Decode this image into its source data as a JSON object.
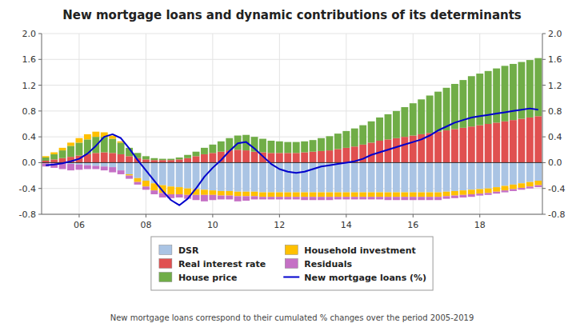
{
  "chart_data": {
    "type": "bar",
    "stacked": true,
    "title": "New mortgage loans and dynamic contributions of its determinants",
    "subtitle": "New mortgage loans correspond to their cumulated % changes over the period 2005-2019",
    "categories": [
      null,
      null,
      null,
      null,
      "06",
      null,
      null,
      null,
      null,
      null,
      null,
      null,
      "08",
      null,
      null,
      null,
      null,
      null,
      null,
      null,
      "10",
      null,
      null,
      null,
      null,
      null,
      null,
      null,
      "12",
      null,
      null,
      null,
      null,
      null,
      null,
      null,
      "14",
      null,
      null,
      null,
      null,
      null,
      null,
      null,
      "16",
      null,
      null,
      null,
      null,
      null,
      null,
      null,
      "18",
      null,
      null,
      null,
      null,
      null,
      null,
      null
    ],
    "ylim": [
      -0.8,
      2.0
    ],
    "yticks": [
      -0.8,
      -0.4,
      {
        "value": 0,
        "label": "0.0"
      },
      0.4,
      0.8,
      1.2,
      1.6,
      {
        "value": 2,
        "label": "2.0"
      }
    ],
    "y2lim": [
      -0.8,
      2.0
    ],
    "y2ticks": [
      -0.8,
      -0.4,
      {
        "value": 0,
        "label": "0.0"
      },
      0.4,
      0.8,
      1.2,
      1.6,
      {
        "value": 2,
        "label": "2.0"
      }
    ],
    "grid": true,
    "legend": "bottom",
    "series": [
      {
        "name": "DSR",
        "color": "#aac4e4",
        "values": [
          -0.01,
          -0.01,
          -0.01,
          -0.02,
          -0.03,
          -0.04,
          -0.05,
          -0.06,
          -0.07,
          -0.12,
          -0.18,
          -0.24,
          -0.28,
          -0.32,
          -0.35,
          -0.37,
          -0.38,
          -0.4,
          -0.41,
          -0.42,
          -0.43,
          -0.44,
          -0.44,
          -0.45,
          -0.45,
          -0.45,
          -0.46,
          -0.46,
          -0.46,
          -0.46,
          -0.46,
          -0.46,
          -0.46,
          -0.46,
          -0.46,
          -0.46,
          -0.46,
          -0.46,
          -0.46,
          -0.46,
          -0.46,
          -0.46,
          -0.46,
          -0.46,
          -0.46,
          -0.46,
          -0.46,
          -0.46,
          -0.45,
          -0.44,
          -0.43,
          -0.42,
          -0.41,
          -0.4,
          -0.38,
          -0.36,
          -0.34,
          -0.32,
          -0.3,
          -0.28
        ]
      },
      {
        "name": "Real interest rate",
        "color": "#e05050",
        "values": [
          0.03,
          0.05,
          0.07,
          0.09,
          0.11,
          0.13,
          0.15,
          0.16,
          0.15,
          0.13,
          0.1,
          0.07,
          0.05,
          0.04,
          0.04,
          0.04,
          0.05,
          0.07,
          0.1,
          0.13,
          0.15,
          0.17,
          0.19,
          0.2,
          0.19,
          0.17,
          0.16,
          0.15,
          0.15,
          0.15,
          0.15,
          0.16,
          0.17,
          0.18,
          0.19,
          0.21,
          0.23,
          0.25,
          0.28,
          0.31,
          0.34,
          0.36,
          0.38,
          0.4,
          0.42,
          0.44,
          0.46,
          0.48,
          0.5,
          0.52,
          0.54,
          0.56,
          0.58,
          0.6,
          0.62,
          0.64,
          0.66,
          0.68,
          0.7,
          0.72
        ]
      },
      {
        "name": "House price",
        "color": "#70ad47",
        "values": [
          0.05,
          0.08,
          0.12,
          0.17,
          0.2,
          0.23,
          0.25,
          0.24,
          0.22,
          0.18,
          0.13,
          0.08,
          0.05,
          0.03,
          0.02,
          0.02,
          0.03,
          0.05,
          0.07,
          0.1,
          0.13,
          0.16,
          0.19,
          0.22,
          0.24,
          0.23,
          0.21,
          0.19,
          0.18,
          0.17,
          0.17,
          0.17,
          0.18,
          0.2,
          0.22,
          0.24,
          0.26,
          0.28,
          0.3,
          0.33,
          0.36,
          0.39,
          0.42,
          0.46,
          0.5,
          0.54,
          0.58,
          0.62,
          0.66,
          0.7,
          0.74,
          0.78,
          0.8,
          0.82,
          0.84,
          0.86,
          0.87,
          0.88,
          0.89,
          0.9
        ]
      },
      {
        "name": "Household investment",
        "color": "#ffc000",
        "values": [
          0.02,
          0.03,
          0.04,
          0.05,
          0.07,
          0.08,
          0.08,
          0.07,
          0.05,
          0.02,
          -0.02,
          -0.06,
          -0.09,
          -0.11,
          -0.12,
          -0.12,
          -0.11,
          -0.1,
          -0.09,
          -0.08,
          -0.07,
          -0.07,
          -0.07,
          -0.07,
          -0.07,
          -0.07,
          -0.07,
          -0.07,
          -0.07,
          -0.07,
          -0.07,
          -0.07,
          -0.07,
          -0.07,
          -0.07,
          -0.07,
          -0.07,
          -0.07,
          -0.07,
          -0.07,
          -0.07,
          -0.07,
          -0.07,
          -0.07,
          -0.07,
          -0.07,
          -0.07,
          -0.07,
          -0.07,
          -0.07,
          -0.07,
          -0.07,
          -0.07,
          -0.07,
          -0.07,
          -0.07,
          -0.07,
          -0.07,
          -0.07,
          -0.07
        ]
      },
      {
        "name": "Residuals",
        "color": "#c570c5",
        "values": [
          -0.05,
          -0.07,
          -0.09,
          -0.1,
          -0.08,
          -0.06,
          -0.05,
          -0.06,
          -0.08,
          -0.06,
          -0.05,
          -0.04,
          -0.05,
          -0.06,
          -0.07,
          -0.06,
          -0.05,
          -0.06,
          -0.08,
          -0.1,
          -0.08,
          -0.06,
          -0.06,
          -0.08,
          -0.07,
          -0.05,
          -0.04,
          -0.04,
          -0.04,
          -0.04,
          -0.04,
          -0.05,
          -0.05,
          -0.05,
          -0.05,
          -0.04,
          -0.04,
          -0.04,
          -0.04,
          -0.04,
          -0.04,
          -0.05,
          -0.05,
          -0.05,
          -0.05,
          -0.05,
          -0.05,
          -0.05,
          -0.04,
          -0.04,
          -0.04,
          -0.04,
          -0.03,
          -0.03,
          -0.03,
          -0.03,
          -0.03,
          -0.03,
          -0.03,
          -0.03
        ]
      },
      {
        "name": "New mortgage loans (%)",
        "type": "line",
        "color": "#0000cc",
        "values": [
          -0.04,
          -0.03,
          -0.01,
          0.02,
          0.06,
          0.14,
          0.26,
          0.4,
          0.44,
          0.38,
          0.22,
          0.04,
          -0.12,
          -0.28,
          -0.44,
          -0.58,
          -0.66,
          -0.56,
          -0.4,
          -0.22,
          -0.08,
          0.04,
          0.18,
          0.3,
          0.32,
          0.22,
          0.1,
          -0.02,
          -0.1,
          -0.14,
          -0.16,
          -0.14,
          -0.1,
          -0.06,
          -0.04,
          -0.02,
          0.0,
          0.02,
          0.06,
          0.12,
          0.16,
          0.2,
          0.24,
          0.28,
          0.32,
          0.36,
          0.42,
          0.5,
          0.56,
          0.62,
          0.66,
          0.7,
          0.72,
          0.74,
          0.76,
          0.78,
          0.8,
          0.82,
          0.84,
          0.82
        ]
      }
    ]
  }
}
